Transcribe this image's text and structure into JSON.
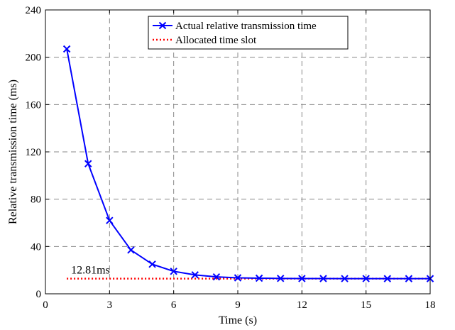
{
  "chart_data": {
    "type": "line",
    "xlabel": "Time (s)",
    "ylabel": "Relative transmission time (ms)",
    "xlim": [
      0,
      18
    ],
    "ylim": [
      0,
      240
    ],
    "xticks": [
      0,
      3,
      6,
      9,
      12,
      15,
      18
    ],
    "yticks": [
      0,
      40,
      80,
      120,
      160,
      200,
      240
    ],
    "grid": true,
    "legend_position": "top-center",
    "series": [
      {
        "name": "Actual relative transmission time",
        "color": "#0000ff",
        "marker": "x",
        "style": "solid",
        "x": [
          1,
          2,
          3,
          4,
          5,
          6,
          7,
          8,
          9,
          10,
          11,
          12,
          13,
          14,
          15,
          16,
          17,
          18
        ],
        "y": [
          207,
          110,
          62,
          37,
          25,
          19,
          16,
          14.3,
          13.5,
          13.2,
          13.0,
          12.9,
          12.9,
          12.85,
          12.85,
          12.83,
          12.82,
          12.82
        ]
      },
      {
        "name": "Allocated time slot",
        "color": "#ff0000",
        "style": "dotted",
        "x": [
          1,
          18
        ],
        "y": [
          12.81,
          12.81
        ]
      }
    ],
    "annotations": [
      {
        "text": "12.81ms",
        "x": 1.2,
        "y": 12.81
      }
    ]
  }
}
